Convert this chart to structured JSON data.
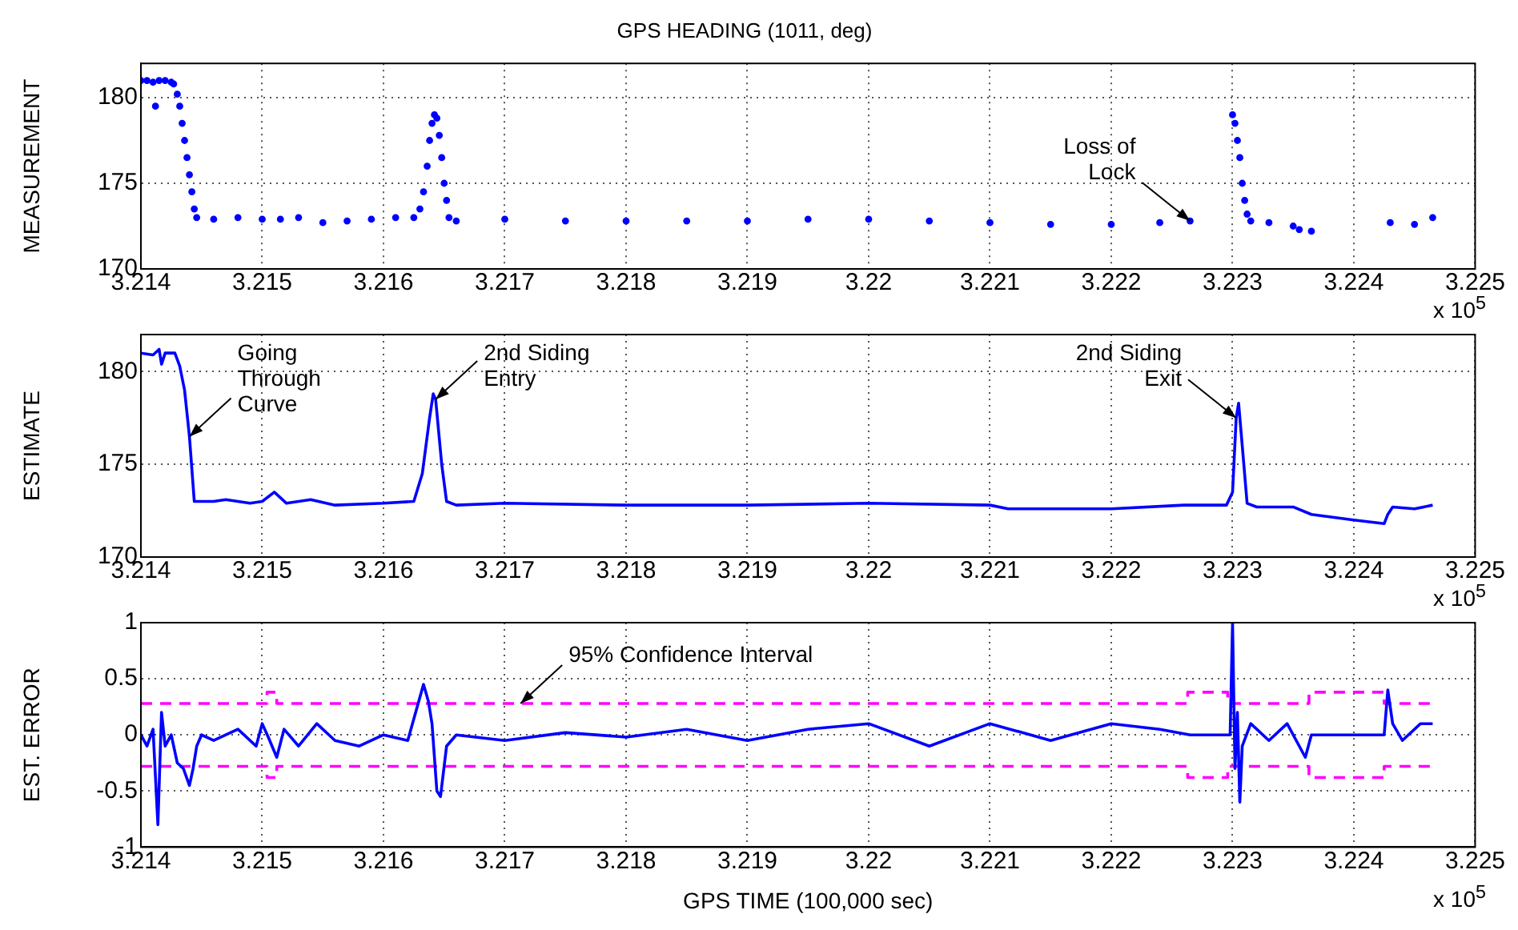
{
  "chart_data": [
    {
      "type": "scatter",
      "title": "GPS HEADING (1011, deg)",
      "ylabel": "MEASUREMENT",
      "xlim": [
        3.214,
        3.225
      ],
      "xticks": [
        3.214,
        3.215,
        3.216,
        3.217,
        3.218,
        3.219,
        3.22,
        3.221,
        3.222,
        3.223,
        3.224,
        3.225
      ],
      "ylim": [
        170,
        182
      ],
      "yticks": [
        170,
        175,
        180
      ],
      "grid": true,
      "marker": "circle",
      "series": [
        {
          "color": "#0000ff",
          "x": [
            3.214,
            3.21405,
            3.2141,
            3.21412,
            3.21415,
            3.2142,
            3.21425,
            3.21427,
            3.2143,
            3.21432,
            3.21434,
            3.21436,
            3.21438,
            3.2144,
            3.21442,
            3.21444,
            3.21446,
            3.2146,
            3.2148,
            3.215,
            3.21515,
            3.2153,
            3.2155,
            3.2157,
            3.2159,
            3.2161,
            3.21625,
            3.2163,
            3.21633,
            3.21636,
            3.21638,
            3.2164,
            3.21642,
            3.21644,
            3.21646,
            3.21648,
            3.2165,
            3.21652,
            3.21654,
            3.2166,
            3.217,
            3.2175,
            3.218,
            3.2185,
            3.219,
            3.2195,
            3.22,
            3.2205,
            3.221,
            3.2215,
            3.222,
            3.2224,
            3.22265,
            3.223,
            3.22302,
            3.22304,
            3.22306,
            3.22308,
            3.2231,
            3.22312,
            3.22315,
            3.2233,
            3.2235,
            3.22355,
            3.22365,
            3.2243,
            3.2245,
            3.22465
          ],
          "values": [
            181,
            181,
            180.9,
            179.5,
            181,
            181,
            180.9,
            180.8,
            180.2,
            179.5,
            178.5,
            177.5,
            176.5,
            175.5,
            174.5,
            173.5,
            173,
            172.9,
            173,
            172.9,
            172.9,
            173,
            172.7,
            172.8,
            172.9,
            173,
            173,
            173.5,
            174.5,
            176,
            177.5,
            178.5,
            179,
            178.8,
            177.8,
            176.5,
            175,
            174,
            173,
            172.8,
            172.9,
            172.8,
            172.8,
            172.8,
            172.8,
            172.9,
            172.9,
            172.8,
            172.7,
            172.6,
            172.6,
            172.7,
            172.8,
            179,
            178.5,
            177.5,
            176.5,
            175,
            174,
            173.2,
            172.8,
            172.7,
            172.5,
            172.3,
            172.2,
            172.7,
            172.6,
            173
          ]
        }
      ],
      "annotations": [
        {
          "text": "Loss of\nLock",
          "x": 3.22265,
          "y": 172.8
        },
        "x 10$^{5}$"
      ]
    },
    {
      "type": "line",
      "ylabel": "ESTIMATE",
      "xlim": [
        3.214,
        3.225
      ],
      "xticks": [
        3.214,
        3.215,
        3.216,
        3.217,
        3.218,
        3.219,
        3.22,
        3.221,
        3.222,
        3.223,
        3.224,
        3.225
      ],
      "ylim": [
        170,
        182
      ],
      "yticks": [
        170,
        175,
        180
      ],
      "grid": true,
      "marker": "none",
      "line_style": "solid",
      "series": [
        {
          "color": "#0000ff",
          "x": [
            3.214,
            3.2141,
            3.21415,
            3.21417,
            3.2142,
            3.21428,
            3.21432,
            3.21436,
            3.2144,
            3.21444,
            3.2146,
            3.2147,
            3.2149,
            3.215,
            3.2151,
            3.2152,
            3.2154,
            3.2156,
            3.216,
            3.21625,
            3.21632,
            3.21638,
            3.21641,
            3.21643,
            3.21648,
            3.21652,
            3.2166,
            3.217,
            3.218,
            3.219,
            3.22,
            3.221,
            3.22115,
            3.222,
            3.2226,
            3.22295,
            3.223,
            3.22303,
            3.22305,
            3.22308,
            3.22312,
            3.2232,
            3.2235,
            3.22365,
            3.224,
            3.22425,
            3.22428,
            3.22432,
            3.2245,
            3.22465
          ],
          "values": [
            181,
            180.9,
            181.2,
            180.4,
            181,
            181,
            180.3,
            179,
            176.5,
            173,
            173,
            173.1,
            172.9,
            173,
            173.5,
            172.9,
            173.1,
            172.8,
            172.9,
            173,
            174.5,
            177.5,
            178.8,
            178.5,
            175,
            173,
            172.8,
            172.9,
            172.8,
            172.8,
            172.9,
            172.8,
            172.6,
            172.6,
            172.8,
            172.8,
            173.5,
            177.5,
            178.3,
            176,
            172.9,
            172.7,
            172.7,
            172.3,
            172,
            171.8,
            172.3,
            172.7,
            172.6,
            172.8
          ]
        }
      ],
      "annotations": [
        {
          "text": "Going\nThrough\nCurve",
          "x": 3.2144,
          "y": 176.5
        },
        {
          "text": "2nd Siding\nEntry",
          "x": 3.21643,
          "y": 178.5
        },
        {
          "text": "2nd Siding\nExit",
          "x": 3.22303,
          "y": 177.5
        },
        "x 10$^{5}$"
      ]
    },
    {
      "type": "line",
      "xlabel": "GPS TIME (100,000 sec)",
      "ylabel": "EST. ERROR",
      "xlim": [
        3.214,
        3.225
      ],
      "xticks": [
        3.214,
        3.215,
        3.216,
        3.217,
        3.218,
        3.219,
        3.22,
        3.221,
        3.222,
        3.223,
        3.224,
        3.225
      ],
      "ylim": [
        -1,
        1
      ],
      "yticks": [
        -1,
        -0.5,
        0,
        0.5,
        1
      ],
      "grid": true,
      "marker": "none",
      "series": [
        {
          "color": "#0000ff",
          "line_style": "solid",
          "x": [
            3.214,
            3.21405,
            3.2141,
            3.21414,
            3.21417,
            3.2142,
            3.21425,
            3.2143,
            3.21435,
            3.2144,
            3.21443,
            3.21446,
            3.2145,
            3.2146,
            3.2148,
            3.21495,
            3.215,
            3.21505,
            3.21512,
            3.21518,
            3.2153,
            3.21545,
            3.2156,
            3.2158,
            3.216,
            3.2162,
            3.21633,
            3.21637,
            3.2164,
            3.21644,
            3.21647,
            3.21652,
            3.2166,
            3.217,
            3.2175,
            3.218,
            3.2185,
            3.219,
            3.2195,
            3.22,
            3.2205,
            3.221,
            3.2215,
            3.222,
            3.2224,
            3.22265,
            3.22298,
            3.223,
            3.22302,
            3.22304,
            3.22306,
            3.22308,
            3.22315,
            3.2233,
            3.22345,
            3.2236,
            3.22365,
            3.22425,
            3.22428,
            3.22432,
            3.2244,
            3.22455,
            3.22465
          ],
          "values": [
            0,
            -0.1,
            0.05,
            -0.8,
            0.2,
            -0.1,
            0,
            -0.25,
            -0.3,
            -0.45,
            -0.3,
            -0.1,
            0,
            -0.05,
            0.05,
            -0.1,
            0.1,
            -0.02,
            -0.2,
            0.05,
            -0.1,
            0.1,
            -0.05,
            -0.1,
            0,
            -0.05,
            0.45,
            0.3,
            0.1,
            -0.5,
            -0.55,
            -0.1,
            0,
            -0.05,
            0.02,
            -0.02,
            0.05,
            -0.05,
            0.05,
            0.1,
            -0.1,
            0.1,
            -0.05,
            0.1,
            0.05,
            0,
            0,
            1,
            -0.3,
            0.2,
            -0.6,
            -0.1,
            0.1,
            -0.05,
            0.1,
            -0.2,
            0,
            0,
            0.4,
            0.1,
            -0.05,
            0.1,
            0.1
          ]
        },
        {
          "color": "#ff00ff",
          "line_style": "dashed",
          "x": [
            3.214,
            3.21504,
            3.21504,
            3.21512,
            3.21512,
            3.22263,
            3.22263,
            3.22296,
            3.22296,
            3.22363,
            3.22363,
            3.22425,
            3.22425,
            3.22465
          ],
          "values": [
            0.28,
            0.28,
            0.38,
            0.38,
            0.28,
            0.28,
            0.38,
            0.38,
            0.28,
            0.28,
            0.38,
            0.38,
            0.28,
            0.28
          ]
        },
        {
          "color": "#ff00ff",
          "line_style": "dashed",
          "x": [
            3.214,
            3.21504,
            3.21504,
            3.21512,
            3.21512,
            3.22263,
            3.22263,
            3.22296,
            3.22296,
            3.22363,
            3.22363,
            3.22425,
            3.22425,
            3.22465
          ],
          "values": [
            -0.28,
            -0.28,
            -0.38,
            -0.38,
            -0.28,
            -0.28,
            -0.38,
            -0.38,
            -0.28,
            -0.28,
            -0.38,
            -0.38,
            -0.28,
            -0.28
          ]
        }
      ],
      "annotations": [
        {
          "text": "95% Confidence Interval",
          "x": 3.21713,
          "y": 0.28
        },
        "x 10$^{5}$"
      ]
    }
  ]
}
